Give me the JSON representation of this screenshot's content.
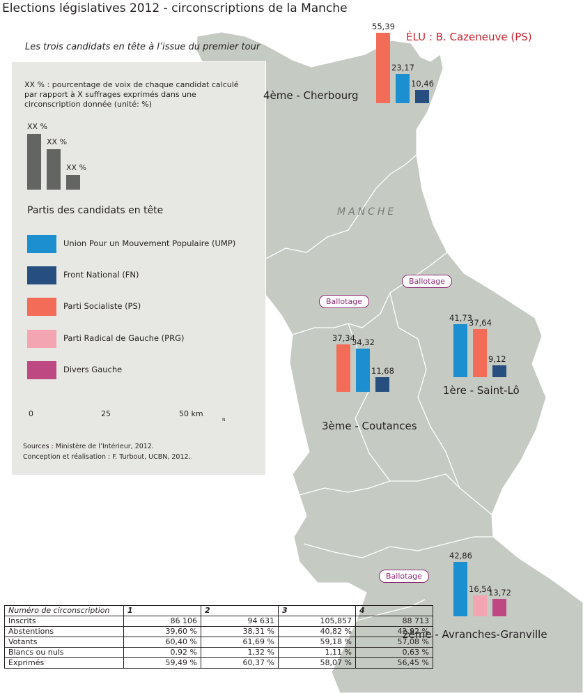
{
  "title": "Elections législatives 2012 - circonscriptions de la Manche",
  "subtitle": "Les trois candidats en tête à l’issue du premier tour",
  "legend": {
    "note": "XX % : pourcentage de voix de chaque candidat calculé par rapport à X suffrages exprimés dans une circonscription donnée (unité: %)",
    "sample_label": "XX %",
    "sample_levels": [
      1,
      0.72,
      0.26
    ],
    "parties_heading": "Partis des candidats en tête",
    "parties": [
      {
        "label": "Union Pour un Mouvement Populaire (UMP)",
        "color": "#1b8fd0"
      },
      {
        "label": "Front National (FN)",
        "color": "#264f7f"
      },
      {
        "label": "Parti Socialiste (PS)",
        "color": "#f26c58"
      },
      {
        "label": "Parti Radical de Gauche (PRG)",
        "color": "#f3a5b2"
      },
      {
        "label": "Divers Gauche",
        "color": "#bd4882"
      }
    ],
    "scale": {
      "ticks": [
        "0",
        "25",
        "50 km"
      ]
    },
    "north_letter": "N",
    "sources": "Sources : Ministère de l’Intérieur, 2012.",
    "credits": "Conception et réalisation : F. Turbout, UCBN, 2012."
  },
  "map": {
    "department_label": "MANCHE",
    "elu": "ÉLU : B. Cazeneuve (PS)",
    "ballotage_label": "Ballotage",
    "circonscriptions": [
      {
        "name": "4ème - Cherbourg",
        "results": [
          {
            "party": "PS",
            "value": 55.39,
            "label": "55,39"
          },
          {
            "party": "UMP",
            "value": 23.17,
            "label": "23,17"
          },
          {
            "party": "FN",
            "value": 10.46,
            "label": "10,46"
          }
        ]
      },
      {
        "name": "3ème - Coutances",
        "results": [
          {
            "party": "PS",
            "value": 37.34,
            "label": "37,34"
          },
          {
            "party": "UMP",
            "value": 34.32,
            "label": "34,32"
          },
          {
            "party": "FN",
            "value": 11.68,
            "label": "11,68"
          }
        ]
      },
      {
        "name": "1ère - Saint-Lô",
        "results": [
          {
            "party": "UMP",
            "value": 41.73,
            "label": "41,73"
          },
          {
            "party": "PS",
            "value": 37.64,
            "label": "37,64"
          },
          {
            "party": "FN",
            "value": 9.12,
            "label": "9,12"
          }
        ]
      },
      {
        "name": "2ème - Avranches-Granville",
        "results": [
          {
            "party": "UMP",
            "value": 42.86,
            "label": "42,86"
          },
          {
            "party": "PRG",
            "value": 16.54,
            "label": "16,54"
          },
          {
            "party": "DVG",
            "value": 13.72,
            "label": "13,72"
          }
        ]
      }
    ]
  },
  "table": {
    "header": [
      "Numéro de circonscription",
      "1",
      "2",
      "3",
      "4"
    ],
    "rows": [
      [
        "Inscrits",
        "86 106",
        "94 631",
        "105,857",
        "88 713"
      ],
      [
        "Abstentions",
        "39,60 %",
        "38,31 %",
        "40,82 %",
        "42,92 %"
      ],
      [
        "Votants",
        "60,40 %",
        "61,69 %",
        "59,18 %",
        "57,08 %"
      ],
      [
        "Blancs ou nuls",
        "0,92 %",
        "1,32 %",
        "1,11 %",
        "0,63 %"
      ],
      [
        "Exprimés",
        "59,49 %",
        "60,37 %",
        "58,07 %",
        "56,45 %"
      ]
    ]
  }
}
